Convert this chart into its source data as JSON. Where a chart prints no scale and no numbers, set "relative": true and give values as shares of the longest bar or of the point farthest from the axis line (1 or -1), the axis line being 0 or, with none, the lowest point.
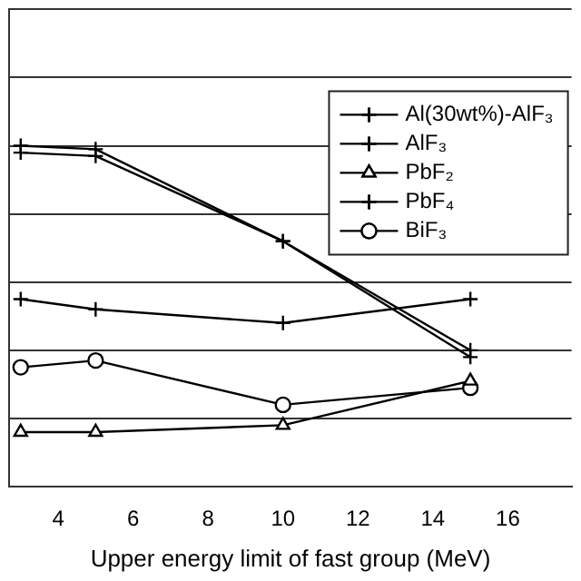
{
  "chart_data": {
    "type": "line",
    "xlabel": "Upper energy limit of fast group (MeV)",
    "relative": true,
    "xlim": [
      2.7,
      17.7
    ],
    "xticks": [
      4,
      6,
      8,
      10,
      12,
      14,
      16
    ],
    "grid": "y",
    "legend": "top right",
    "x": [
      3,
      5,
      10,
      15
    ],
    "series": [
      {
        "name": "Al(30wt%)-AlF₃",
        "color": "#000000",
        "marker": "cross",
        "values": [
          1,
          0.99,
          0.72,
          0.4
        ]
      },
      {
        "name": "AlF₃",
        "color": "#000000",
        "marker": "cross",
        "values": [
          0.98,
          0.97,
          0.72,
          0.38
        ]
      },
      {
        "name": "PbF₂",
        "color": "#000000",
        "marker": "triangle",
        "values": [
          0.16,
          0.16,
          0.18,
          0.31
        ]
      },
      {
        "name": "PbF₄",
        "color": "#000000",
        "marker": "cross",
        "values": [
          0.55,
          0.52,
          0.48,
          0.55
        ]
      },
      {
        "name": "BiF₃",
        "color": "#000000",
        "marker": "circle",
        "values": [
          0.35,
          0.37,
          0.24,
          0.29
        ]
      }
    ]
  }
}
